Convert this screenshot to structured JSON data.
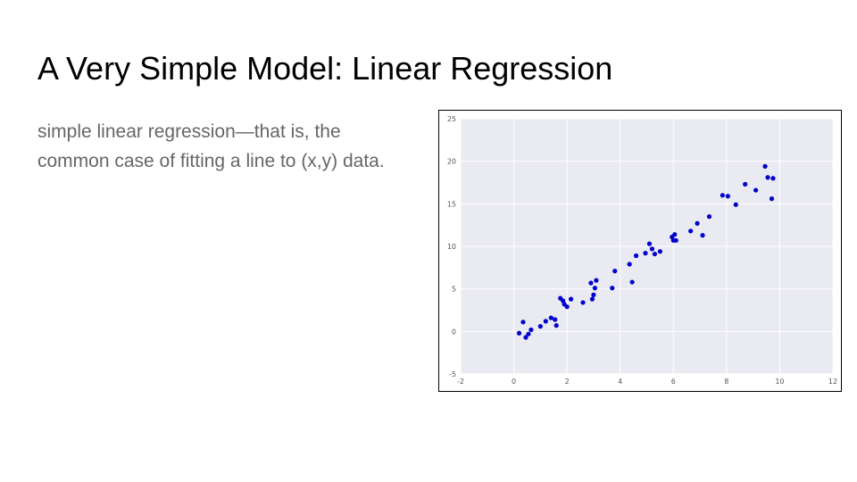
{
  "slide": {
    "title": "A Very Simple Model: Linear Regression",
    "body": "simple linear regression—that is, the common case of fitting a line to (x,y) data."
  },
  "chart_data": {
    "type": "scatter",
    "title": "",
    "xlabel": "",
    "ylabel": "",
    "xlim": [
      -2,
      12
    ],
    "ylim": [
      -5,
      25
    ],
    "xticks": [
      -2,
      0,
      2,
      4,
      6,
      8,
      10,
      12
    ],
    "yticks": [
      -5,
      0,
      5,
      10,
      15,
      20,
      25
    ],
    "grid": true,
    "background_color": "#eaeaf2",
    "grid_color": "#ffffff",
    "point_color": "#0000cc",
    "series": [
      {
        "x": [
          0.2,
          0.35,
          0.45,
          0.55,
          0.65,
          1.0,
          1.2,
          1.4,
          1.55,
          1.6,
          1.75,
          1.85,
          1.9,
          2.0,
          2.15,
          2.6,
          2.9,
          2.95,
          3.0,
          3.05,
          3.1,
          3.7,
          3.8,
          4.35,
          4.45,
          4.6,
          4.95,
          5.1,
          5.2,
          5.3,
          5.5,
          5.95,
          6.0,
          6.05,
          6.1,
          6.65,
          6.9,
          7.1,
          7.35,
          7.85,
          8.05,
          8.35,
          8.7,
          9.1,
          9.45,
          9.55,
          9.7,
          9.75
        ],
        "y": [
          -0.2,
          1.1,
          -0.7,
          -0.3,
          0.2,
          0.6,
          1.2,
          1.6,
          1.4,
          0.7,
          3.9,
          3.6,
          3.2,
          2.9,
          3.8,
          3.4,
          5.7,
          3.8,
          4.3,
          5.1,
          6.0,
          5.1,
          7.1,
          7.9,
          5.8,
          8.9,
          9.2,
          10.3,
          9.7,
          9.1,
          9.4,
          11.1,
          10.7,
          11.4,
          10.7,
          11.8,
          12.7,
          11.3,
          13.5,
          16.0,
          15.9,
          14.9,
          17.3,
          16.6,
          19.4,
          18.1,
          15.6,
          18.0
        ]
      }
    ]
  }
}
